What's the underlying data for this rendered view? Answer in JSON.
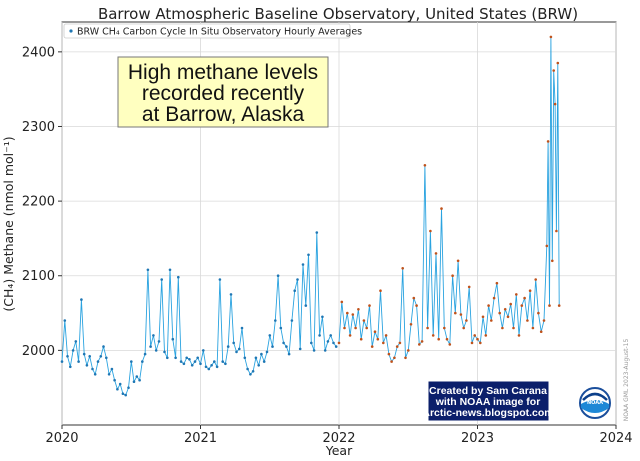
{
  "chart_data": {
    "type": "line",
    "title": "Barrow Atmospheric Baseline Observatory, United States (BRW)",
    "xlabel": "Year",
    "ylabel": "(CH₄) Methane (nmol mol⁻¹)",
    "xlim": [
      2020.0,
      2024.0
    ],
    "ylim": [
      1900,
      2440
    ],
    "x_ticks": [
      "2020",
      "2021",
      "2022",
      "2023",
      "2024"
    ],
    "y_ticks": [
      "2000",
      "2100",
      "2200",
      "2300",
      "2400"
    ],
    "grid": true,
    "legend": {
      "placement": "top-left",
      "entries": [
        "BRW CH₄ Carbon Cycle In Situ Observatory Hourly Averages"
      ]
    },
    "series": [
      {
        "name": "BRW CH₄ Carbon Cycle In Situ Observatory Hourly Averages",
        "color": "#1f77b4",
        "line_color": "#2aa3e0",
        "x": [
          2020.0,
          2020.02,
          2020.04,
          2020.06,
          2020.08,
          2020.1,
          2020.12,
          2020.14,
          2020.16,
          2020.18,
          2020.2,
          2020.22,
          2020.24,
          2020.26,
          2020.28,
          2020.3,
          2020.32,
          2020.34,
          2020.36,
          2020.38,
          2020.4,
          2020.42,
          2020.44,
          2020.46,
          2020.48,
          2020.5,
          2020.52,
          2020.54,
          2020.56,
          2020.58,
          2020.6,
          2020.62,
          2020.64,
          2020.66,
          2020.68,
          2020.7,
          2020.72,
          2020.74,
          2020.76,
          2020.78,
          2020.8,
          2020.82,
          2020.84,
          2020.86,
          2020.88,
          2020.9,
          2020.92,
          2020.94,
          2020.96,
          2020.98,
          2021.0,
          2021.02,
          2021.04,
          2021.06,
          2021.08,
          2021.1,
          2021.12,
          2021.14,
          2021.16,
          2021.18,
          2021.2,
          2021.22,
          2021.24,
          2021.26,
          2021.28,
          2021.3,
          2021.32,
          2021.34,
          2021.36,
          2021.38,
          2021.4,
          2021.42,
          2021.44,
          2021.46,
          2021.48,
          2021.5,
          2021.52,
          2021.54,
          2021.56,
          2021.58,
          2021.6,
          2021.62,
          2021.64,
          2021.66,
          2021.68,
          2021.7,
          2021.72,
          2021.74,
          2021.76,
          2021.78,
          2021.8,
          2021.82,
          2021.84,
          2021.86,
          2021.88,
          2021.9,
          2021.92,
          2021.94,
          2021.96,
          2021.98
        ],
        "y": [
          1985,
          2040,
          1992,
          1978,
          2000,
          2012,
          1985,
          2068,
          1995,
          1980,
          1992,
          1975,
          1968,
          1985,
          1992,
          2005,
          1990,
          1968,
          1975,
          1960,
          1948,
          1955,
          1942,
          1940,
          1950,
          1985,
          1958,
          1965,
          1960,
          1985,
          1995,
          2108,
          2005,
          2020,
          2000,
          2012,
          2095,
          1998,
          1990,
          2108,
          2015,
          1990,
          2098,
          1985,
          1982,
          1990,
          1988,
          1980,
          1985,
          1990,
          1982,
          2000,
          1978,
          1975,
          1980,
          1985,
          1978,
          2095,
          1985,
          1982,
          2005,
          2075,
          2010,
          1998,
          2002,
          2030,
          1990,
          1975,
          1968,
          1972,
          1990,
          1980,
          1995,
          1985,
          1998,
          2020,
          2005,
          2040,
          2100,
          2030,
          2010,
          2005,
          1995,
          2040,
          2080,
          2095,
          2002,
          2115,
          2060,
          2128,
          2010,
          2000,
          2158,
          2020,
          2045,
          2000,
          2012,
          2020,
          2010,
          2005
        ]
      },
      {
        "name": "",
        "color": "#c0521b",
        "line_color": "#2aa3e0",
        "x": [
          2022.0,
          2022.02,
          2022.04,
          2022.06,
          2022.08,
          2022.1,
          2022.12,
          2022.14,
          2022.16,
          2022.18,
          2022.2,
          2022.22,
          2022.24,
          2022.26,
          2022.28,
          2022.3,
          2022.32,
          2022.34,
          2022.36,
          2022.38,
          2022.4,
          2022.42,
          2022.44,
          2022.46,
          2022.48,
          2022.5,
          2022.52,
          2022.54,
          2022.56,
          2022.58,
          2022.6,
          2022.62,
          2022.64,
          2022.66,
          2022.68,
          2022.7,
          2022.72,
          2022.74,
          2022.76,
          2022.78,
          2022.8,
          2022.82,
          2022.84,
          2022.86,
          2022.88,
          2022.9,
          2022.92,
          2022.94,
          2022.96,
          2022.98,
          2023.0,
          2023.02,
          2023.04,
          2023.06,
          2023.08,
          2023.1,
          2023.12,
          2023.14,
          2023.16,
          2023.18,
          2023.2,
          2023.22,
          2023.24,
          2023.26,
          2023.28,
          2023.3,
          2023.32,
          2023.34,
          2023.36,
          2023.38,
          2023.4,
          2023.42,
          2023.44,
          2023.46,
          2023.48,
          2023.5,
          2023.51,
          2023.52,
          2023.53,
          2023.54,
          2023.55,
          2023.56,
          2023.57,
          2023.58,
          2023.59
        ],
        "y": [
          2010,
          2065,
          2030,
          2050,
          2020,
          2048,
          2030,
          2055,
          2015,
          2040,
          2030,
          2060,
          2005,
          2025,
          2015,
          2080,
          2010,
          2020,
          1995,
          1985,
          1990,
          2005,
          2010,
          2110,
          1990,
          2000,
          2035,
          2070,
          2060,
          2008,
          2012,
          2248,
          2030,
          2160,
          2020,
          2130,
          2015,
          2190,
          2030,
          2015,
          2008,
          2100,
          2050,
          2120,
          2048,
          2030,
          2040,
          2085,
          2010,
          2020,
          2015,
          2010,
          2045,
          2020,
          2060,
          2040,
          2070,
          2090,
          2050,
          2030,
          2055,
          2045,
          2062,
          2030,
          2075,
          2020,
          2060,
          2070,
          2040,
          2080,
          2030,
          2095,
          2050,
          2025,
          2040,
          2140,
          2280,
          2060,
          2420,
          2120,
          2375,
          2330,
          2160,
          2385,
          2060
        ]
      }
    ],
    "annotations": {
      "headline": [
        "High methane levels",
        "recorded recently",
        "at Barrow, Alaska"
      ],
      "credit": [
        "Created by Sam Carana",
        "with NOAA image for",
        "Arctic-news.blogspot.com"
      ],
      "side_note": "NOAA GML 2023-August-15",
      "logo": "NOAA"
    }
  }
}
